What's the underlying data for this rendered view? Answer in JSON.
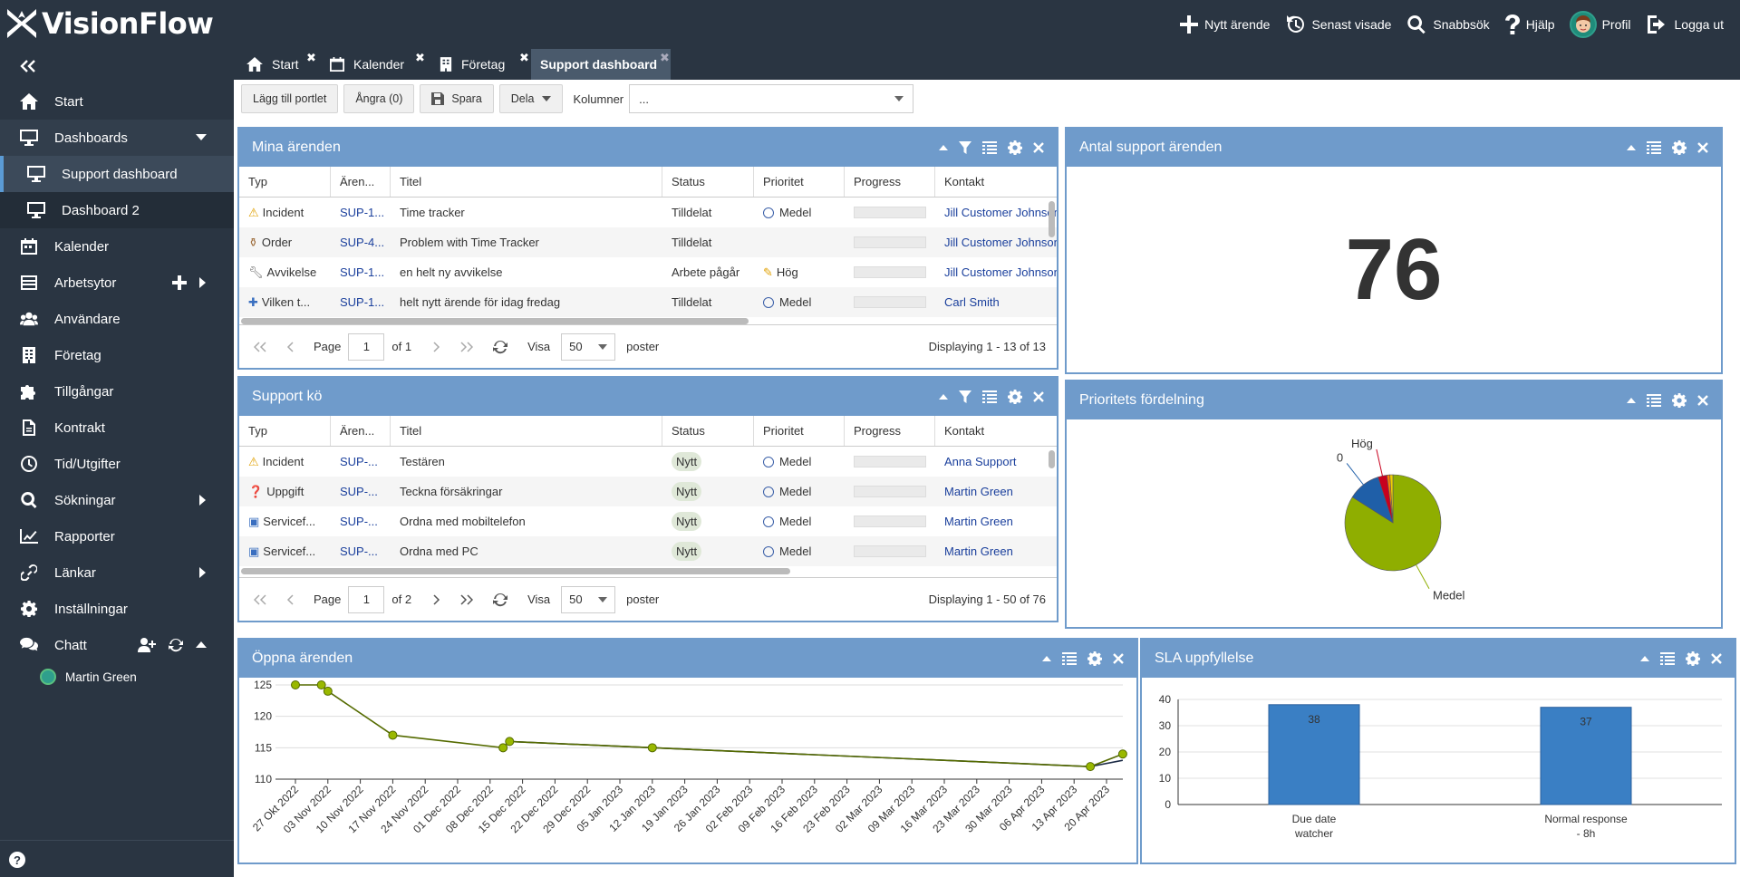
{
  "app": {
    "logo": "VisionFlow"
  },
  "topnav": [
    {
      "label": "Nytt ärende",
      "icon": "plus-icon"
    },
    {
      "label": "Senast visade",
      "icon": "history-icon"
    },
    {
      "label": "Snabbsök",
      "icon": "search-icon"
    },
    {
      "label": "Hjälp",
      "icon": "question-icon"
    },
    {
      "label": "Profil",
      "icon": "avatar"
    },
    {
      "label": "Logga ut",
      "icon": "logout-icon"
    }
  ],
  "sidebar": {
    "items": [
      {
        "label": "Start"
      },
      {
        "label": "Dashboards"
      },
      {
        "label": "Support dashboard"
      },
      {
        "label": "Dashboard 2"
      },
      {
        "label": "Kalender"
      },
      {
        "label": "Arbetsytor"
      },
      {
        "label": "Användare"
      },
      {
        "label": "Företag"
      },
      {
        "label": "Tillgångar"
      },
      {
        "label": "Kontrakt"
      },
      {
        "label": "Tid/Utgifter"
      },
      {
        "label": "Sökningar"
      },
      {
        "label": "Rapporter"
      },
      {
        "label": "Länkar"
      },
      {
        "label": "Inställningar"
      },
      {
        "label": "Chatt"
      }
    ],
    "chat_user": "Martin Green",
    "help": "?"
  },
  "tabs": [
    {
      "label": "Start"
    },
    {
      "label": "Kalender"
    },
    {
      "label": "Företag"
    },
    {
      "label": "Support dashboard"
    }
  ],
  "toolbar": {
    "add": "Lägg till portlet",
    "undo": "Ångra (0)",
    "save": "Spara",
    "share": "Dela",
    "columns_label": "Kolumner",
    "columns_value": "..."
  },
  "grid_headers": [
    "Typ",
    "Ären...",
    "Titel",
    "Status",
    "Prioritet",
    "Progress",
    "Kontakt"
  ],
  "mina": {
    "title": "Mina ärenden",
    "rows": [
      {
        "typ": "Incident",
        "id": "SUP-1...",
        "titel": "Time tracker",
        "status": "Tilldelat",
        "prio": "Medel",
        "kontakt": "Jill Customer Johnson"
      },
      {
        "typ": "Order",
        "id": "SUP-4...",
        "titel": "Problem with Time Tracker",
        "status": "Tilldelat",
        "prio": "",
        "kontakt": "Jill Customer Johnson"
      },
      {
        "typ": "Avvikelse",
        "id": "SUP-1...",
        "titel": "en helt ny avvikelse",
        "status": "Arbete pågår",
        "prio": "Hög",
        "kontakt": "Jill Customer Johnson"
      },
      {
        "typ": "Vilken t...",
        "id": "SUP-1...",
        "titel": "helt nytt ärende för idag fredag",
        "status": "Tilldelat",
        "prio": "Medel",
        "kontakt": "Carl Smith"
      }
    ],
    "pager": {
      "page_label": "Page",
      "page": "1",
      "of": "of 1",
      "visa": "Visa",
      "size": "50",
      "poster": "poster",
      "display": "Displaying 1 - 13 of 13"
    }
  },
  "ko": {
    "title": "Support kö",
    "headers": [
      "Typ",
      "Ären...",
      "Titel",
      "Status",
      "Prioritet",
      "Progress",
      "Kontakt"
    ],
    "rows": [
      {
        "typ": "Incident",
        "id": "SUP-...",
        "titel": "Testären",
        "status": "Nytt",
        "prio": "Medel",
        "kontakt": "Anna Support"
      },
      {
        "typ": "Uppgift",
        "id": "SUP-...",
        "titel": "Teckna försäkringar",
        "status": "Nytt",
        "prio": "Medel",
        "kontakt": "Martin Green"
      },
      {
        "typ": "Servicef...",
        "id": "SUP-...",
        "titel": "Ordna med mobiltelefon",
        "status": "Nytt",
        "prio": "Medel",
        "kontakt": "Martin Green"
      },
      {
        "typ": "Servicef...",
        "id": "SUP-...",
        "titel": "Ordna med PC",
        "status": "Nytt",
        "prio": "Medel",
        "kontakt": "Martin Green"
      }
    ],
    "pager": {
      "page_label": "Page",
      "page": "1",
      "of": "of 2",
      "visa": "Visa",
      "size": "50",
      "poster": "poster",
      "display": "Displaying 1 - 50 of 76"
    }
  },
  "antal": {
    "title": "Antal support ärenden",
    "value": "76"
  },
  "prio_panel": {
    "title": "Prioritets fördelning"
  },
  "oppna": {
    "title": "Öppna ärenden"
  },
  "sla": {
    "title": "SLA uppfyllelse"
  },
  "chart_data": [
    {
      "type": "pie",
      "title": "Prioritets fördelning",
      "slices": [
        {
          "label": "Medel",
          "value": 84,
          "color": "#8fae00"
        },
        {
          "label": "0",
          "value": 11,
          "color": "#1f5fa8"
        },
        {
          "label": "Hög",
          "value": 3,
          "color": "#c8001e"
        },
        {
          "label": "",
          "value": 1,
          "color": "#ff7f00"
        },
        {
          "label": "",
          "value": 1,
          "color": "#f0d000"
        }
      ]
    },
    {
      "type": "line",
      "title": "Öppna ärenden",
      "ylim": [
        110,
        125
      ],
      "yticks": [
        110,
        115,
        120,
        125
      ],
      "x": [
        "27 Okt 2022",
        "03 Nov 2022",
        "10 Nov 2022",
        "17 Nov 2022",
        "24 Nov 2022",
        "01 Dec 2022",
        "08 Dec 2022",
        "15 Dec 2022",
        "22 Dec 2022",
        "29 Dec 2022",
        "05 Jan 2023",
        "12 Jan 2023",
        "19 Jan 2023",
        "26 Jan 2023",
        "02 Feb 2023",
        "09 Feb 2023",
        "16 Feb 2023",
        "23 Feb 2023",
        "02 Mar 2023",
        "09 Mar 2023",
        "16 Mar 2023",
        "23 Mar 2023",
        "30 Mar 2023",
        "06 Apr 2023",
        "13 Apr 2023",
        "20 Apr 2023"
      ],
      "series": [
        {
          "color": "#556b00",
          "points": [
            [
              0,
              125
            ],
            [
              0.8,
              125
            ],
            [
              1,
              124
            ],
            [
              3,
              117
            ],
            [
              6.4,
              115
            ],
            [
              6.6,
              116
            ],
            [
              11,
              115
            ],
            [
              24.5,
              112
            ],
            [
              25.5,
              114
            ]
          ]
        },
        {
          "color": "#1b2a45",
          "points": [
            [
              6.6,
              116
            ],
            [
              11,
              115
            ],
            [
              24.5,
              112
            ],
            [
              25.5,
              113
            ]
          ]
        }
      ]
    },
    {
      "type": "bar",
      "title": "SLA uppfyllelse",
      "categories": [
        "Due date watcher",
        "Normal response - 8h"
      ],
      "values": [
        38,
        37
      ],
      "ylim": [
        0,
        40
      ],
      "yticks": [
        0,
        10,
        20,
        30,
        40
      ]
    }
  ]
}
